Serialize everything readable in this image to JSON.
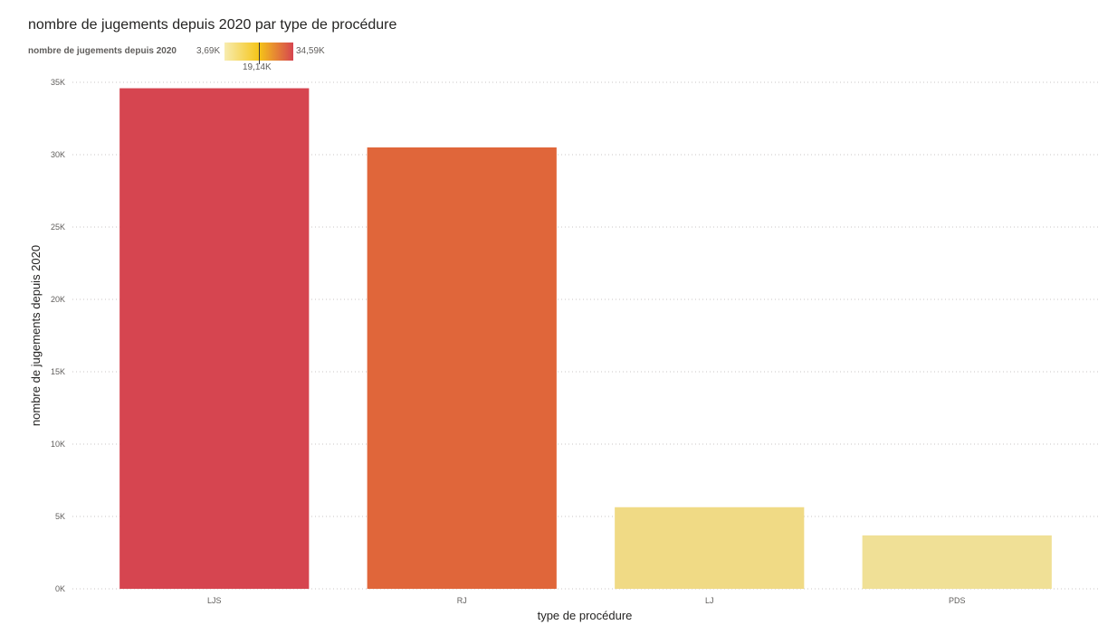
{
  "chart_data": {
    "type": "bar",
    "title": "nombre de jugements depuis 2020 par type de procédure",
    "xlabel": "type de procédure",
    "ylabel": "nombre de jugements depuis 2020",
    "categories": [
      "LJS",
      "RJ",
      "LJ",
      "PDS"
    ],
    "values": [
      34590,
      30500,
      5640,
      3690
    ],
    "ylim": [
      0,
      35000
    ],
    "yticks": [
      0,
      5000,
      10000,
      15000,
      20000,
      25000,
      30000,
      35000
    ],
    "ytick_labels": [
      "0K",
      "5K",
      "10K",
      "15K",
      "20K",
      "25K",
      "30K",
      "35K"
    ],
    "grid": true,
    "bar_colors": [
      "#d64550",
      "#e0663a",
      "#f0da85",
      "#f0e096"
    ],
    "color_legend": {
      "label": "nombre de jugements depuis 2020",
      "min_label": "3,69K",
      "mid_label": "19,14K",
      "max_label": "34,59K",
      "colors": [
        "#f7ecb0",
        "#f5c518",
        "#d64550"
      ]
    }
  }
}
